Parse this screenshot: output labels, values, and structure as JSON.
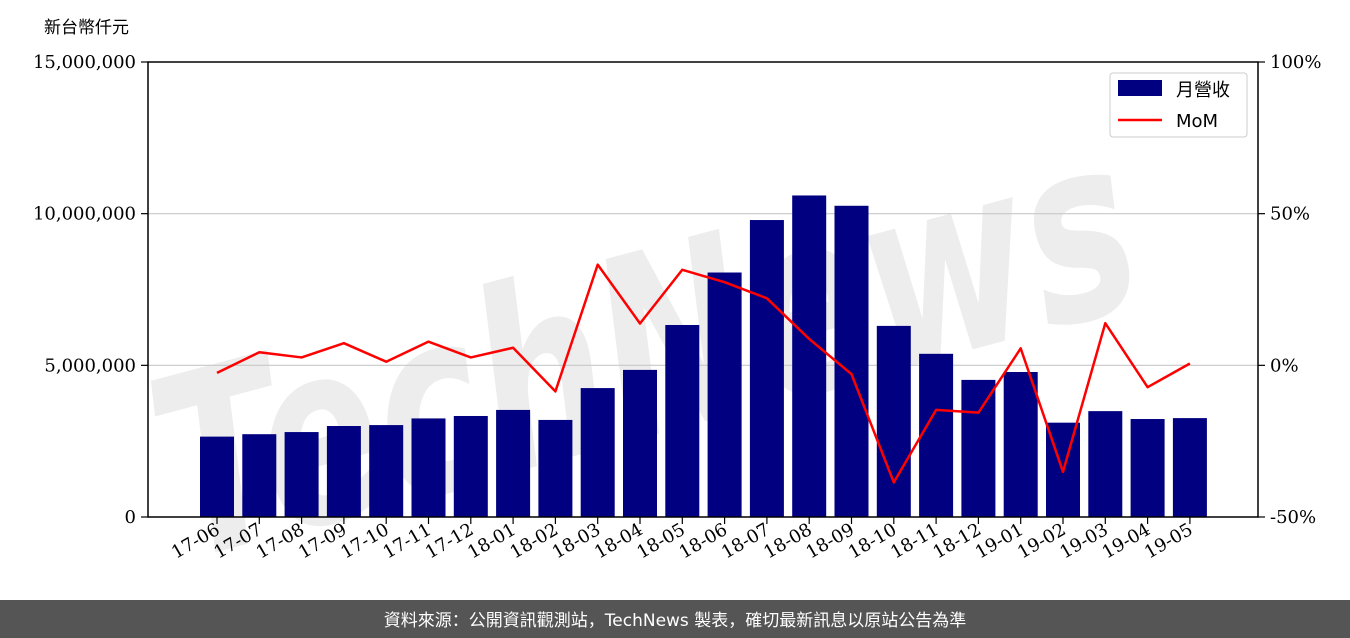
{
  "chart_data": {
    "type": "bar",
    "y_unit_label": "新台幣仟元",
    "categories": [
      "17-06",
      "17-07",
      "17-08",
      "17-09",
      "17-10",
      "17-11",
      "17-12",
      "18-01",
      "18-02",
      "18-03",
      "18-04",
      "18-05",
      "18-06",
      "18-07",
      "18-08",
      "18-09",
      "18-10",
      "18-11",
      "18-12",
      "19-01",
      "19-02",
      "19-03",
      "19-04",
      "19-05"
    ],
    "series": [
      {
        "name": "月營收",
        "type": "bar",
        "axis": "left",
        "color": "#000080",
        "values": [
          2650000,
          2730000,
          2800000,
          3000000,
          3030000,
          3250000,
          3330000,
          3530000,
          3200000,
          4250000,
          4850000,
          6330000,
          8060000,
          9790000,
          10600000,
          10260000,
          6300000,
          5380000,
          4520000,
          4780000,
          3110000,
          3490000,
          3230000,
          3260000
        ]
      },
      {
        "name": "MoM",
        "type": "line",
        "axis": "right",
        "color": "#ff0000",
        "values": [
          -2.5,
          4.3,
          2.6,
          7.3,
          1.2,
          7.8,
          2.6,
          5.8,
          -8.6,
          33.2,
          13.8,
          31.5,
          27.4,
          22.1,
          8.7,
          -2.9,
          -38.6,
          -14.7,
          -15.6,
          5.6,
          -35.1,
          13.9,
          -7.2,
          0.6
        ]
      }
    ],
    "ylim": [
      0,
      15000000
    ],
    "yticks": [
      "0",
      "5,000,000",
      "10,000,000",
      "15,000,000"
    ],
    "y2lim": [
      -50,
      100
    ],
    "y2ticks": [
      "-50%",
      "0%",
      "50%",
      "100%"
    ],
    "grid": "horizontal",
    "legend_position": "top-right"
  },
  "watermark": {
    "text": "TechNews",
    "color": "#f5a5a5"
  },
  "footer": {
    "text": "資料來源：公開資訊觀測站，TechNews 製表，確切最新訊息以原站公告為準",
    "background": "#555555"
  }
}
